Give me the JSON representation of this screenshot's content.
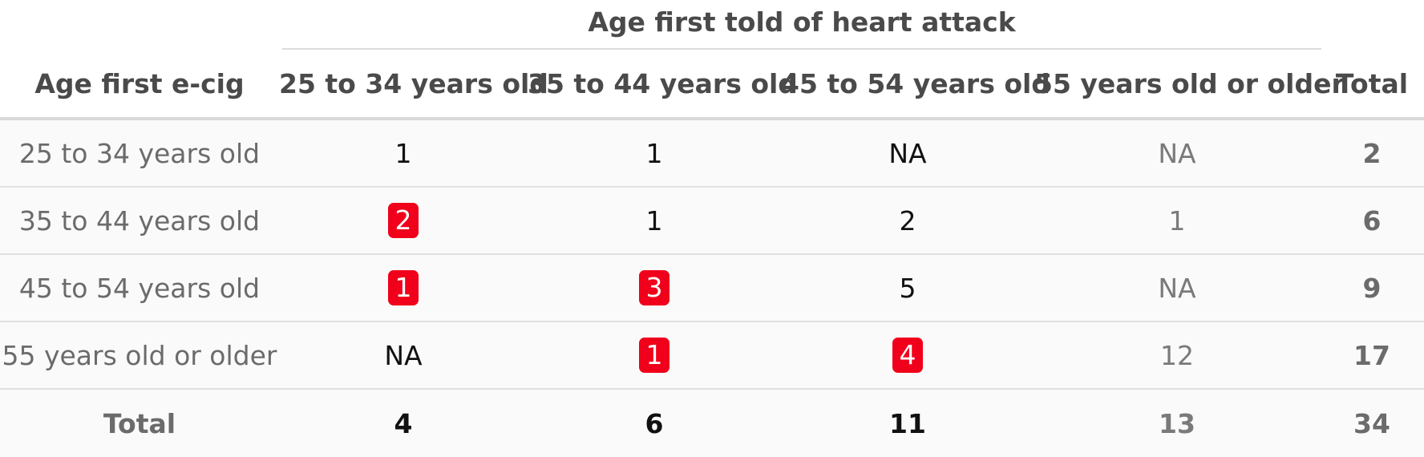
{
  "chart_data": {
    "type": "table",
    "spanner_label": "Age first told of heart attack",
    "stub_header": "Age first e-cig",
    "columns": [
      "25 to 34 years old",
      "35 to 44 years old",
      "45 to 54 years old",
      "55 years old or older",
      "Total"
    ],
    "rows": [
      {
        "label": "25 to 34 years old",
        "cells": [
          "1",
          "1",
          "NA",
          "NA",
          "2"
        ]
      },
      {
        "label": "35 to 44 years old",
        "cells": [
          "2",
          "1",
          "2",
          "1",
          "6"
        ]
      },
      {
        "label": "45 to 54 years old",
        "cells": [
          "1",
          "3",
          "5",
          "NA",
          "9"
        ]
      },
      {
        "label": "55 years old or older",
        "cells": [
          "NA",
          "1",
          "4",
          "12",
          "17"
        ]
      }
    ],
    "total_row": {
      "label": "Total",
      "cells": [
        "4",
        "6",
        "11",
        "13",
        "34"
      ]
    },
    "highlighted_cells": [
      [
        1,
        0
      ],
      [
        2,
        0
      ],
      [
        2,
        1
      ],
      [
        3,
        1
      ],
      [
        3,
        2
      ]
    ],
    "highlight_color": "#f0001a"
  }
}
